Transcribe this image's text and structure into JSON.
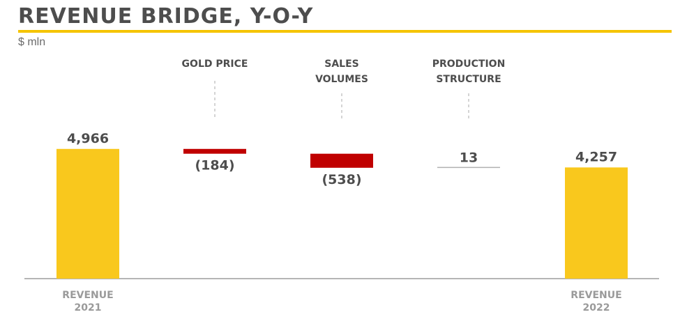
{
  "header": {
    "title": "REVENUE BRIDGE, Y-O-Y",
    "unit": "$ mln"
  },
  "colors": {
    "accent": "#f5c400",
    "total_bar": "#f9c81d",
    "negative_bar": "#c00000",
    "neutral_line": "#b0b0b0",
    "text": "#4d4d4d",
    "axis_text": "#9a9a9a"
  },
  "chart_data": {
    "type": "bar",
    "subtype": "waterfall",
    "title": "REVENUE BRIDGE, Y-O-Y",
    "ylabel": "$ mln",
    "grid": false,
    "steps": [
      {
        "label_lines": [
          "REVENUE",
          "2021"
        ],
        "label_position": "bottom",
        "kind": "total",
        "value": 4966,
        "display": "4,966"
      },
      {
        "label_lines": [
          "GOLD PRICE"
        ],
        "label_position": "top",
        "kind": "delta",
        "value": -184,
        "display": "(184)"
      },
      {
        "label_lines": [
          "SALES",
          "VOLUMES"
        ],
        "label_position": "top",
        "kind": "delta",
        "value": -538,
        "display": "(538)"
      },
      {
        "label_lines": [
          "PRODUCTION",
          "STRUCTURE"
        ],
        "label_position": "top",
        "kind": "delta",
        "value": 13,
        "display": "13"
      },
      {
        "label_lines": [
          "REVENUE",
          "2022"
        ],
        "label_position": "bottom",
        "kind": "total",
        "value": 4257,
        "display": "4,257"
      }
    ]
  }
}
